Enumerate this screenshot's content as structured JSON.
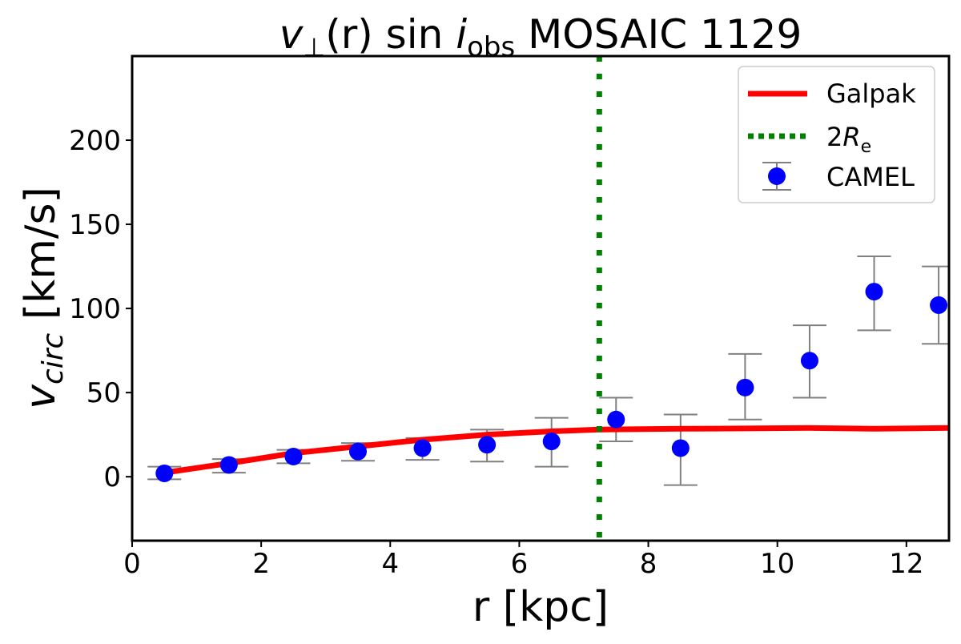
{
  "chart_data": {
    "type": "scatter",
    "title": {
      "v": "v",
      "perp": "⊥",
      "r_part": "(r) sin ",
      "i": "i",
      "obs": "obs",
      "rest": " MOSAIC 1129"
    },
    "xlabel": "r [kpc]",
    "ylabel": {
      "v": "v",
      "sub": "circ",
      "rest": " [km/s]"
    },
    "xlim": [
      0,
      12.66
    ],
    "ylim": [
      -38,
      250
    ],
    "xticks": [
      0,
      2,
      4,
      6,
      8,
      10,
      12
    ],
    "yticks": [
      0,
      50,
      100,
      150,
      200
    ],
    "grid": false,
    "legend_position": "top-right",
    "series": [
      {
        "name": "Galpak",
        "kind": "line",
        "color": "#ff0000",
        "x": [
          0.5,
          1.5,
          2.5,
          3.5,
          4.5,
          5.5,
          6.5,
          7.2,
          8.5,
          9.5,
          10.5,
          11.5,
          12.66
        ],
        "y": [
          2.4,
          8,
          14,
          18,
          22,
          25,
          27,
          28,
          28.5,
          28.7,
          29,
          28.5,
          29
        ]
      },
      {
        "name": "2R_e",
        "legend": {
          "prefix": "2",
          "R": "R",
          "sub": "e"
        },
        "kind": "vline",
        "color": "#008000",
        "x": 7.24
      },
      {
        "name": "CAMEL",
        "kind": "errorbar",
        "color": "#0000ff",
        "errcolor": "#808080",
        "x": [
          0.5,
          1.5,
          2.5,
          3.5,
          4.5,
          5.5,
          6.5,
          7.5,
          8.5,
          9.5,
          10.5,
          11.5,
          12.5
        ],
        "y": [
          2,
          7,
          12,
          15,
          17,
          19,
          21,
          34,
          17,
          53,
          69,
          110,
          102
        ],
        "y_upper": [
          6,
          10.5,
          16,
          20,
          23,
          28,
          35,
          47,
          37,
          73,
          90,
          131,
          125
        ],
        "y_lower": [
          -1.5,
          2.4,
          8,
          9.5,
          10,
          9,
          6,
          21,
          -5,
          34,
          47,
          87,
          79
        ]
      }
    ]
  }
}
